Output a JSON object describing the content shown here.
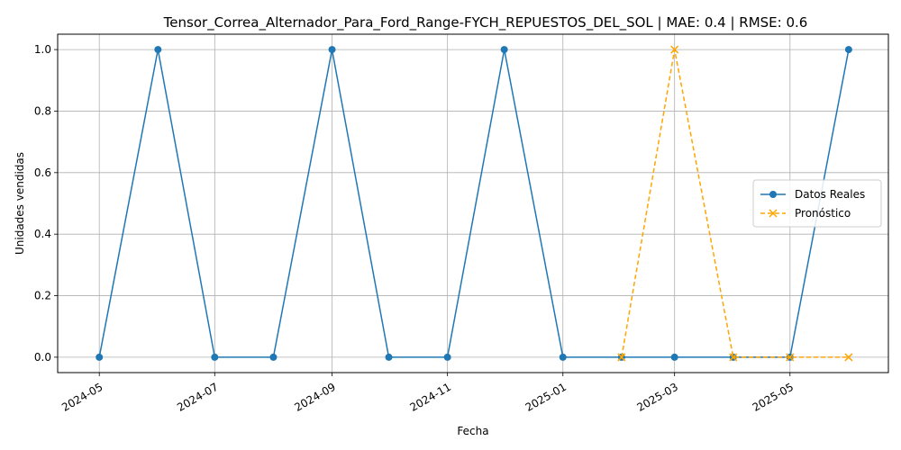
{
  "chart_data": {
    "type": "line",
    "title": "Tensor_Correa_Alternador_Para_Ford_Range-FYCH_REPUESTOS_DEL_SOL | MAE: 0.4 | RMSE: 0.6",
    "xlabel": "Fecha",
    "ylabel": "Unidades vendidas",
    "x_ticks": [
      "2024-05",
      "2024-07",
      "2024-09",
      "2024-11",
      "2025-01",
      "2025-03",
      "2025-05"
    ],
    "y_ticks": [
      "0.0",
      "0.2",
      "0.4",
      "0.6",
      "0.8",
      "1.0"
    ],
    "xlim": [
      "2024-04-09",
      "2025-06-22"
    ],
    "ylim": [
      -0.05,
      1.05
    ],
    "grid": true,
    "legend_position": "center-right",
    "series": [
      {
        "name": "Datos Reales",
        "color": "#1f77b4",
        "line_style": "solid",
        "marker": "circle",
        "x": [
          "2024-05-01",
          "2024-06-01",
          "2024-07-01",
          "2024-08-01",
          "2024-09-01",
          "2024-10-01",
          "2024-11-01",
          "2024-12-01",
          "2025-01-01",
          "2025-02-01",
          "2025-03-01",
          "2025-04-01",
          "2025-05-01",
          "2025-06-01"
        ],
        "values": [
          0,
          1,
          0,
          0,
          1,
          0,
          0,
          1,
          0,
          0,
          0,
          0,
          0,
          1
        ]
      },
      {
        "name": "Pronóstico",
        "color": "#ffa500",
        "line_style": "dashed",
        "marker": "x",
        "x": [
          "2025-02-01",
          "2025-03-01",
          "2025-04-01",
          "2025-05-01",
          "2025-06-01"
        ],
        "values": [
          0,
          1,
          0,
          0,
          0
        ]
      }
    ]
  }
}
